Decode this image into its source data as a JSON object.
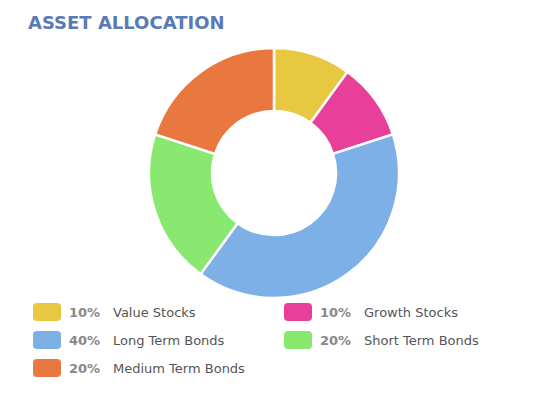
{
  "chart_data": {
    "type": "pie",
    "title": "ASSET ALLOCATION",
    "categories": [
      "Value Stocks",
      "Growth Stocks",
      "Long Term Bonds",
      "Short Term Bonds",
      "Medium Term Bonds"
    ],
    "values": [
      10,
      10,
      40,
      20,
      20
    ],
    "value_labels": [
      "10%",
      "10%",
      "40%",
      "20%",
      "20%"
    ],
    "colors": [
      "#E8C840",
      "#E8409A",
      "#7EB0E8",
      "#88E870",
      "#E87840"
    ],
    "legend": "bottom"
  }
}
